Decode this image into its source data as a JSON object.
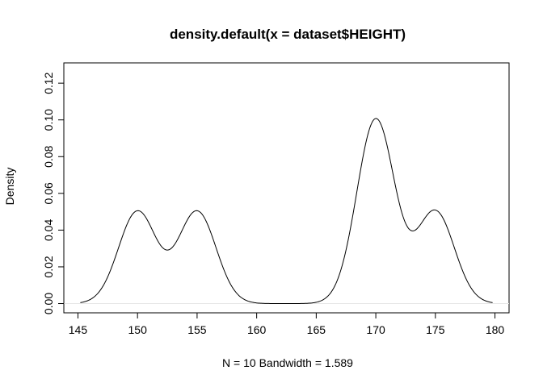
{
  "chart_data": {
    "type": "line",
    "title": "density.default(x = dataset$HEIGHT)",
    "xlabel": "N = 10   Bandwidth = 1.589",
    "ylabel": "Density",
    "xlim": [
      145.2,
      179.8
    ],
    "ylim": [
      0,
      0.126
    ],
    "x_ticks": [
      "145",
      "150",
      "155",
      "160",
      "165",
      "170",
      "175",
      "180"
    ],
    "y_ticks": [
      "0.00",
      "0.02",
      "0.04",
      "0.06",
      "0.08",
      "0.10",
      "0.12"
    ],
    "grid": false,
    "baseline": 0,
    "kernel": {
      "bandwidth": 1.589,
      "n": 10,
      "points": [
        150,
        150,
        155,
        155,
        170,
        170,
        170,
        170,
        175,
        175
      ]
    },
    "colors": {
      "line": "#000000",
      "axis": "#000000",
      "baseline": "#e6e6e6"
    }
  }
}
